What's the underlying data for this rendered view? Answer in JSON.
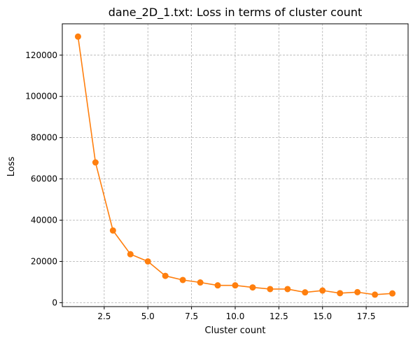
{
  "chart_data": {
    "type": "line",
    "title": "dane_2D_1.txt: Loss in terms of cluster count",
    "xlabel": "Cluster count",
    "ylabel": "Loss",
    "xlim": [
      0.1,
      19.9
    ],
    "ylim": [
      -1900,
      135200
    ],
    "x_ticks": [
      2.5,
      5.0,
      7.5,
      10.0,
      12.5,
      15.0,
      17.5
    ],
    "x_tick_labels": [
      "2.5",
      "5.0",
      "7.5",
      "10.0",
      "12.5",
      "15.0",
      "17.5"
    ],
    "y_ticks": [
      0,
      20000,
      40000,
      60000,
      80000,
      100000,
      120000
    ],
    "y_tick_labels": [
      "0",
      "20000",
      "40000",
      "60000",
      "80000",
      "100000",
      "120000"
    ],
    "grid": true,
    "series": [
      {
        "color": "#ff7f0e",
        "marker": "circle",
        "x": [
          1,
          2,
          3,
          4,
          5,
          6,
          7,
          8,
          9,
          10,
          11,
          12,
          13,
          14,
          15,
          16,
          17,
          18,
          19
        ],
        "y": [
          129000,
          68000,
          35000,
          23500,
          20000,
          13000,
          11000,
          9800,
          8400,
          8400,
          7400,
          6600,
          6600,
          5000,
          5900,
          4600,
          5100,
          3900,
          4500
        ]
      }
    ]
  }
}
